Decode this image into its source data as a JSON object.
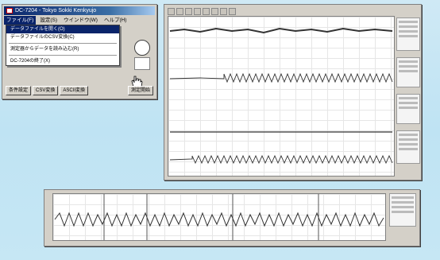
{
  "app_window": {
    "title": "DC-7204  -  Tokyo Sokki Kenkyujo",
    "menus": [
      "ファイル(F)",
      "設定(S)",
      "ウインドウ(W)",
      "ヘルプ(H)"
    ],
    "file_menu_items": [
      "データファイルを開く(O)",
      "データファイルのCSV変換(C)",
      "測定器からデータを読み込む(R)",
      "DC-7204の終了(X)"
    ],
    "bottom_buttons": [
      "条件設定",
      "CSV変換",
      "ASCII変換",
      "測定開始"
    ]
  },
  "colors": {
    "titlebar": "#0a246a",
    "desktop": "#c6e7f4",
    "waveform": "#333333"
  },
  "icons": [
    "app-icon",
    "hand-cursor-icon",
    "record-icon"
  ]
}
